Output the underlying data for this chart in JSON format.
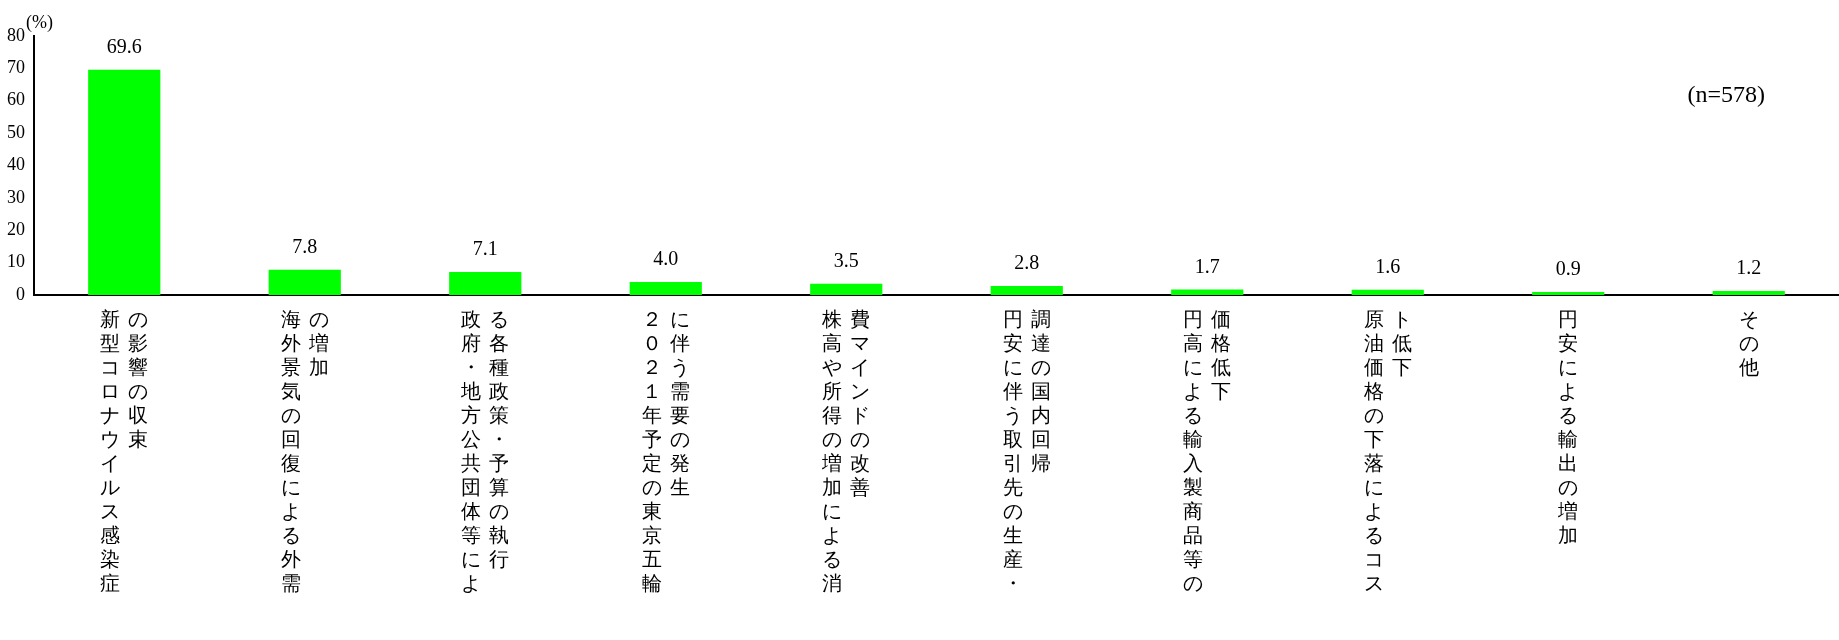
{
  "chart_data": {
    "type": "bar",
    "ylabel": "(%)",
    "annotations": [
      "(n=578)"
    ],
    "categories": [
      "新型コロナウイルス感染症の影響の収束",
      "海外景気の回復による外需の増加",
      "政府・地方公共団体等による各種政策・予算の執行",
      "２０２１年予定の東京五輪に伴う需要の発生",
      "株高や所得の増加による消費マインドの改善",
      "円安に伴う取引先の生産・調達の国内回帰",
      "円高による輸入製商品等の価格低下",
      "原油価格の下落によるコスト低下",
      "円安による輸出の増加",
      "その他"
    ],
    "values": [
      69.6,
      7.8,
      7.1,
      4.0,
      3.5,
      2.8,
      1.7,
      1.6,
      0.9,
      1.2
    ],
    "value_labels": [
      "69.6",
      "7.8",
      "7.1",
      "4.0",
      "3.5",
      "2.8",
      "1.7",
      "1.6",
      "0.9",
      "1.2"
    ],
    "color": "#00ff00",
    "ylim": [
      0,
      80
    ],
    "yticks": [
      0,
      10,
      20,
      30,
      40,
      50,
      60,
      70,
      80
    ],
    "grid": false,
    "legend": false
  }
}
